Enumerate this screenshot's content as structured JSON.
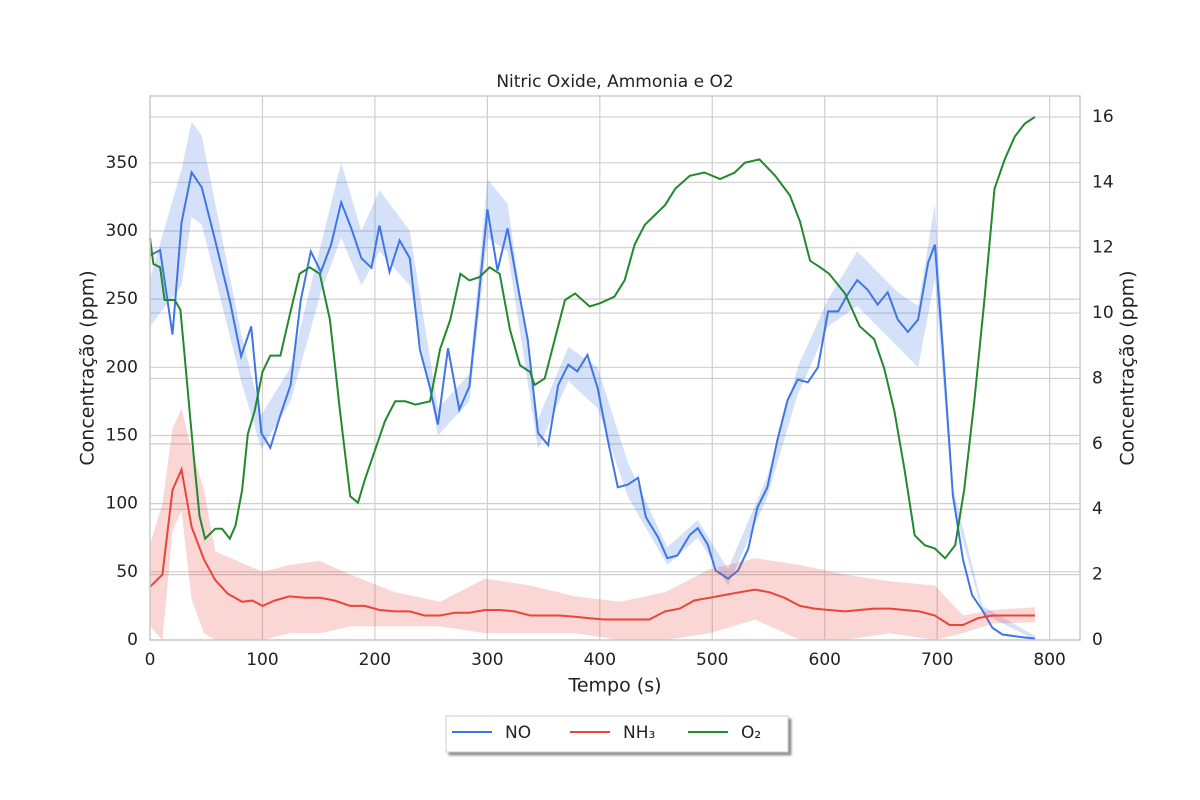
{
  "chart_data": {
    "type": "line",
    "title": "Nitric Oxide, Ammonia e O2",
    "x_label": "Tempo (s)",
    "y_label": "Concentração (ppm)",
    "y2_label": "Concentração (ppm)",
    "xlim": [
      0,
      827
    ],
    "xticks": [
      0,
      100,
      200,
      300,
      400,
      500,
      600,
      700,
      800
    ],
    "ylim": [
      0,
      399
    ],
    "yticks": [
      0,
      50,
      100,
      150,
      200,
      250,
      300,
      350
    ],
    "y2lim": [
      0,
      16.64
    ],
    "y2ticks": [
      0,
      2,
      4,
      6,
      8,
      10,
      12,
      14,
      16
    ],
    "grid": true,
    "legend": "bottom",
    "series": [
      {
        "name": "NO",
        "color": "#3f76e4",
        "x": [
          0,
          9,
          20,
          28,
          37,
          46,
          58,
          71,
          81,
          90,
          99,
          107,
          116,
          125,
          134,
          143,
          152,
          161,
          170,
          179,
          188,
          197,
          204,
          213,
          222,
          231,
          240,
          249,
          256,
          265,
          275,
          284,
          292,
          300,
          309,
          318,
          327,
          336,
          345,
          354,
          363,
          372,
          380,
          389,
          398,
          407,
          416,
          425,
          434,
          441,
          452,
          460,
          469,
          480,
          487,
          496,
          503,
          514,
          523,
          532,
          540,
          549,
          558,
          567,
          576,
          585,
          594,
          603,
          612,
          620,
          629,
          638,
          647,
          656,
          665,
          674,
          683,
          692,
          698,
          705,
          714,
          723,
          731,
          740,
          749,
          758,
          767,
          776,
          787
        ],
        "values": [
          282,
          286,
          224,
          306,
          343,
          332,
          293,
          249,
          208,
          230,
          152,
          141,
          165,
          187,
          249,
          285,
          270,
          290,
          321,
          302,
          280,
          273,
          304,
          270,
          293,
          280,
          213,
          185,
          158,
          214,
          169,
          186,
          249,
          316,
          271,
          302,
          260,
          220,
          152,
          143,
          187,
          202,
          197,
          209,
          185,
          147,
          112,
          114,
          119,
          90,
          75,
          60,
          62,
          77,
          82,
          70,
          51,
          45,
          51,
          67,
          97,
          112,
          147,
          176,
          191,
          189,
          200,
          241,
          241,
          253,
          264,
          257,
          246,
          255,
          235,
          226,
          235,
          277,
          290,
          213,
          106,
          59,
          33,
          22,
          9,
          4,
          3,
          2,
          1
        ],
        "band": {
          "x": [
            0,
            28,
            37,
            46,
            81,
            99,
            125,
            152,
            170,
            188,
            204,
            231,
            256,
            284,
            300,
            318,
            345,
            372,
            398,
            425,
            460,
            487,
            514,
            549,
            576,
            603,
            629,
            665,
            683,
            698,
            714,
            740,
            787
          ],
          "lower": [
            230,
            260,
            310,
            305,
            190,
            140,
            175,
            255,
            295,
            260,
            285,
            260,
            150,
            175,
            295,
            285,
            140,
            190,
            170,
            105,
            55,
            75,
            40,
            105,
            180,
            230,
            245,
            215,
            200,
            265,
            100,
            20,
            0
          ],
          "upper": [
            265,
            345,
            380,
            370,
            225,
            165,
            200,
            290,
            350,
            300,
            330,
            300,
            170,
            195,
            338,
            320,
            162,
            215,
            200,
            130,
            68,
            88,
            52,
            120,
            200,
            250,
            285,
            255,
            245,
            320,
            112,
            25,
            3
          ]
        }
      },
      {
        "name": "NH₃",
        "color": "#e8463a",
        "x": [
          0,
          11,
          20,
          28,
          37,
          48,
          58,
          69,
          82,
          91,
          100,
          111,
          124,
          138,
          151,
          164,
          178,
          191,
          204,
          218,
          231,
          244,
          258,
          271,
          284,
          298,
          311,
          324,
          338,
          351,
          364,
          378,
          391,
          404,
          418,
          431,
          444,
          458,
          471,
          484,
          498,
          511,
          524,
          538,
          551,
          564,
          578,
          591,
          604,
          618,
          631,
          644,
          658,
          671,
          684,
          698,
          711,
          723,
          736,
          749,
          763,
          773,
          787
        ],
        "values": [
          39,
          48,
          110,
          125,
          83,
          59,
          44,
          34,
          28,
          29,
          25,
          29,
          32,
          31,
          31,
          29,
          25,
          25,
          22,
          21,
          21,
          18,
          18,
          20,
          20,
          22,
          22,
          21,
          18,
          18,
          18,
          17,
          16,
          15,
          15,
          15,
          15,
          21,
          23,
          29,
          31,
          33,
          35,
          37,
          35,
          31,
          25,
          23,
          22,
          21,
          22,
          23,
          23,
          22,
          21,
          18,
          11,
          11,
          16,
          18,
          18,
          18,
          18
        ],
        "band": {
          "x": [
            0,
            11,
            20,
            28,
            37,
            48,
            58,
            100,
            124,
            151,
            178,
            218,
            258,
            298,
            338,
            378,
            418,
            458,
            498,
            538,
            578,
            618,
            658,
            698,
            723,
            749,
            787
          ],
          "lower": [
            10,
            0,
            80,
            95,
            30,
            5,
            0,
            0,
            5,
            5,
            10,
            10,
            10,
            5,
            5,
            5,
            0,
            0,
            5,
            15,
            0,
            0,
            5,
            0,
            5,
            12,
            13
          ],
          "upper": [
            70,
            100,
            155,
            170,
            140,
            110,
            65,
            50,
            55,
            58,
            48,
            35,
            28,
            45,
            40,
            32,
            28,
            35,
            52,
            60,
            55,
            48,
            43,
            40,
            18,
            22,
            24
          ]
        }
      },
      {
        "name": "O₂",
        "color": "#23882f",
        "axis": "y2",
        "x": [
          0,
          3,
          9,
          13,
          22,
          27,
          31,
          36,
          40,
          44,
          49,
          58,
          64,
          71,
          76,
          82,
          87,
          93,
          100,
          107,
          116,
          124,
          133,
          142,
          151,
          160,
          169,
          178,
          185,
          191,
          200,
          209,
          218,
          227,
          236,
          249,
          258,
          267,
          276,
          284,
          293,
          302,
          311,
          320,
          329,
          338,
          342,
          351,
          360,
          369,
          378,
          391,
          400,
          413,
          422,
          431,
          440,
          449,
          458,
          467,
          480,
          493,
          507,
          520,
          529,
          542,
          556,
          569,
          578,
          587,
          596,
          604,
          618,
          631,
          644,
          653,
          662,
          671,
          680,
          689,
          698,
          707,
          716,
          724,
          733,
          742,
          751,
          760,
          769,
          778,
          787
        ],
        "values": [
          12.3,
          11.5,
          11.4,
          10.4,
          10.4,
          10.1,
          8.6,
          6.7,
          5.2,
          3.8,
          3.1,
          3.4,
          3.4,
          3.1,
          3.5,
          4.6,
          6.3,
          7.0,
          8.2,
          8.7,
          8.7,
          9.9,
          11.2,
          11.4,
          11.2,
          9.8,
          7.0,
          4.4,
          4.2,
          4.9,
          5.8,
          6.7,
          7.3,
          7.3,
          7.2,
          7.3,
          8.9,
          9.8,
          11.2,
          11.0,
          11.1,
          11.4,
          11.2,
          9.5,
          8.4,
          8.2,
          7.8,
          8.0,
          9.2,
          10.4,
          10.6,
          10.2,
          10.3,
          10.5,
          11.0,
          12.1,
          12.7,
          13.0,
          13.3,
          13.8,
          14.2,
          14.3,
          14.1,
          14.3,
          14.6,
          14.7,
          14.2,
          13.6,
          12.8,
          11.6,
          11.4,
          11.2,
          10.6,
          9.6,
          9.2,
          8.3,
          7.0,
          5.2,
          3.2,
          2.9,
          2.8,
          2.5,
          2.9,
          4.6,
          7.3,
          10.4,
          13.8,
          14.7,
          15.4,
          15.8,
          16.0
        ]
      }
    ]
  }
}
